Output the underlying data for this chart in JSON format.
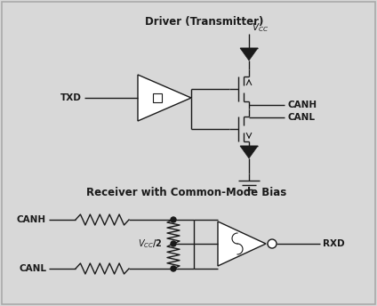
{
  "bg_color": "#d8d8d8",
  "border_color": "#aaaaaa",
  "line_color": "#1a1a1a",
  "title_top": "Driver (Transmitter)",
  "title_bottom": "Receiver with Common-Mode Bias",
  "label_txd": "TXD",
  "label_rxd": "RXD",
  "label_canh": "CANH",
  "label_canl": "CANL",
  "font_size_title": 8.5,
  "font_size_label": 7.5,
  "fig_bg": "#d8d8d8",
  "figw": 4.24,
  "figh": 3.44,
  "dpi": 100
}
